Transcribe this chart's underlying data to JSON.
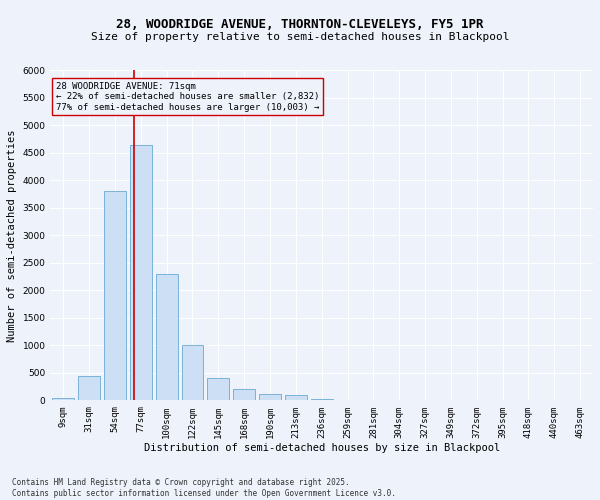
{
  "title_line1": "28, WOODRIDGE AVENUE, THORNTON-CLEVELEYS, FY5 1PR",
  "title_line2": "Size of property relative to semi-detached houses in Blackpool",
  "xlabel": "Distribution of semi-detached houses by size in Blackpool",
  "ylabel": "Number of semi-detached properties",
  "categories": [
    "9sqm",
    "31sqm",
    "54sqm",
    "77sqm",
    "100sqm",
    "122sqm",
    "145sqm",
    "168sqm",
    "190sqm",
    "213sqm",
    "236sqm",
    "259sqm",
    "281sqm",
    "304sqm",
    "327sqm",
    "349sqm",
    "372sqm",
    "395sqm",
    "418sqm",
    "440sqm",
    "463sqm"
  ],
  "values": [
    50,
    450,
    3800,
    4650,
    2300,
    1000,
    400,
    200,
    110,
    100,
    20,
    5,
    2,
    1,
    0,
    0,
    0,
    0,
    0,
    0,
    0
  ],
  "bar_color": "#ccdff5",
  "bar_edge_color": "#6aaad4",
  "vline_color": "#cc0000",
  "annotation_text": "28 WOODRIDGE AVENUE: 71sqm\n← 22% of semi-detached houses are smaller (2,832)\n77% of semi-detached houses are larger (10,003) →",
  "ylim": [
    0,
    6000
  ],
  "yticks": [
    0,
    500,
    1000,
    1500,
    2000,
    2500,
    3000,
    3500,
    4000,
    4500,
    5000,
    5500,
    6000
  ],
  "background_color": "#eef2fa",
  "footnote": "Contains HM Land Registry data © Crown copyright and database right 2025.\nContains public sector information licensed under the Open Government Licence v3.0.",
  "grid_color": "#ffffff",
  "title_fontsize": 9,
  "subtitle_fontsize": 8,
  "axis_label_fontsize": 7.5,
  "tick_fontsize": 6.5,
  "annot_fontsize": 6.5,
  "footnote_fontsize": 5.5
}
